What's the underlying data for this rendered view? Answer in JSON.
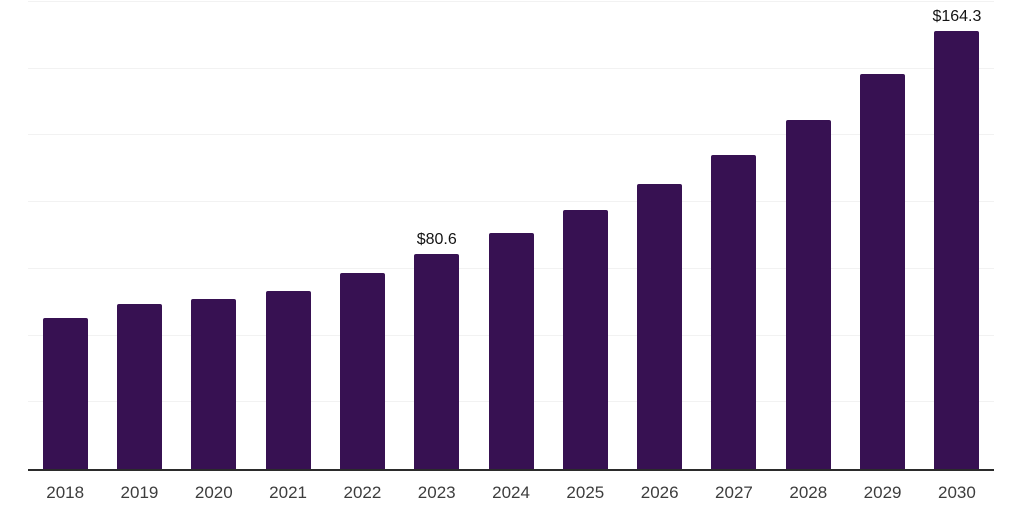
{
  "chart_data": {
    "type": "bar",
    "title": "",
    "xlabel": "",
    "ylabel": "",
    "categories": [
      "2018",
      "2019",
      "2020",
      "2021",
      "2022",
      "2023",
      "2024",
      "2025",
      "2026",
      "2027",
      "2028",
      "2029",
      "2030"
    ],
    "values": [
      56.5,
      61.8,
      63.6,
      66.8,
      73.5,
      80.6,
      88.3,
      97.2,
      106.7,
      117.5,
      130.7,
      148.2,
      164.3
    ],
    "data_labels": [
      "",
      "",
      "",
      "",
      "",
      "$80.6",
      "",
      "",
      "",
      "",
      "",
      "",
      "$164.3"
    ],
    "ylim": [
      0,
      175
    ],
    "grid_step": 25,
    "grid": "horizontal",
    "legend": false,
    "y_tick_labels_visible": false,
    "colors": {
      "bar": "#371152",
      "gridline": "#f2f2f2",
      "axis": "#2b2b2b",
      "tick_label": "#3d3d3d",
      "value_label": "#141414",
      "background": "#ffffff"
    }
  }
}
